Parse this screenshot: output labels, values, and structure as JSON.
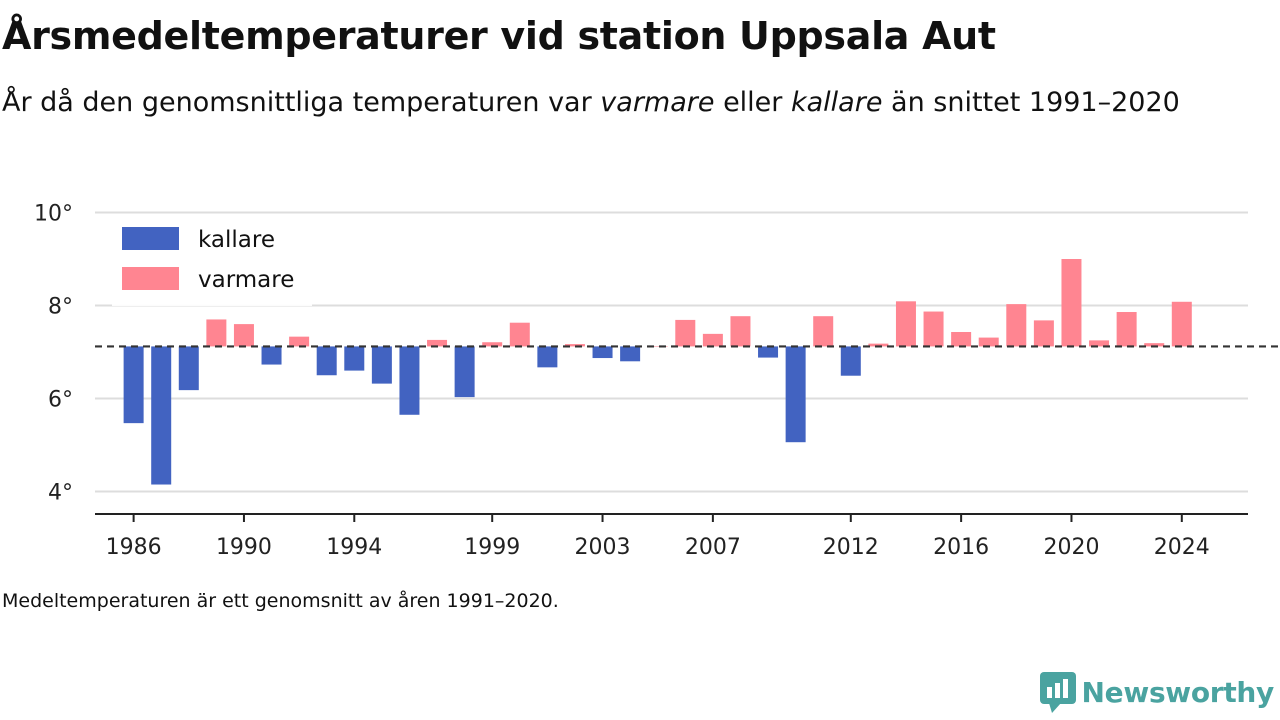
{
  "header": {
    "title": "Årsmedeltemperaturer vid station Uppsala Aut",
    "subtitle_pre": "År då den genomsnittliga temperaturen var ",
    "subtitle_warm": "varmare",
    "subtitle_mid": " eller ",
    "subtitle_cold": "kallare",
    "subtitle_post": " än snittet 1991–2020"
  },
  "footnote": "Medeltemperaturen är ett genomsnitt av åren 1991–2020.",
  "brand": {
    "name": "Newsworthy",
    "icon": "newsworthy-logo-icon",
    "color": "#4aa3a0"
  },
  "colors": {
    "cold": "#4263c1",
    "warm": "#ff8591",
    "baseline": "#333333",
    "grid": "#dddddd"
  },
  "chart_data": {
    "type": "bar",
    "baseline": 7.12,
    "ylim": [
      3.5,
      10
    ],
    "yticks": [
      4,
      6,
      8,
      10
    ],
    "ytick_suffix": "°",
    "xlim": [
      1984.6,
      2026.4
    ],
    "xticks": [
      1986,
      1990,
      1994,
      1999,
      2003,
      2007,
      2012,
      2016,
      2020,
      2024
    ],
    "legend": {
      "placement": "top-left",
      "entries": [
        {
          "key": "cold",
          "label": "kallare"
        },
        {
          "key": "warm",
          "label": "varmare"
        }
      ]
    },
    "x": [
      1986,
      1987,
      1988,
      1989,
      1990,
      1991,
      1992,
      1993,
      1994,
      1995,
      1996,
      1997,
      1998,
      1999,
      2000,
      2001,
      2002,
      2003,
      2004,
      2005,
      2006,
      2007,
      2008,
      2009,
      2010,
      2011,
      2012,
      2013,
      2014,
      2015,
      2016,
      2017,
      2018,
      2019,
      2020,
      2021,
      2022,
      2023,
      2024
    ],
    "values": [
      5.47,
      4.15,
      6.18,
      7.7,
      7.6,
      6.73,
      7.33,
      6.5,
      6.6,
      6.32,
      5.65,
      7.26,
      6.03,
      7.21,
      7.63,
      6.67,
      7.17,
      6.87,
      6.8,
      7.12,
      7.69,
      7.39,
      7.77,
      6.88,
      5.06,
      7.77,
      6.49,
      7.18,
      8.09,
      7.87,
      7.43,
      7.31,
      8.03,
      7.68,
      9.0,
      7.25,
      7.86,
      7.19,
      8.08
    ]
  }
}
